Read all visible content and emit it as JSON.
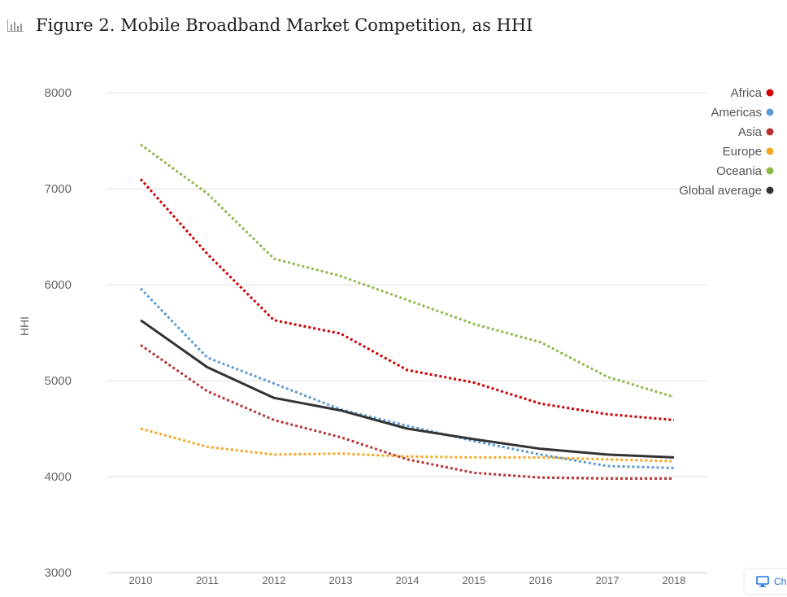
{
  "header": {
    "title": "Figure 2. Mobile Broadband Market Competition, as HHI",
    "icon": "bar-chart-icon"
  },
  "bottom_button": {
    "label": "Ch",
    "icon": "monitor-icon"
  },
  "chart_data": {
    "type": "line",
    "title": "Figure 2. Mobile Broadband Market Competition, as HHI",
    "xlabel": "",
    "ylabel": "HHI",
    "categories": [
      "2010",
      "2011",
      "2012",
      "2013",
      "2014",
      "2015",
      "2016",
      "2017",
      "2018"
    ],
    "ylim": [
      3000,
      8000
    ],
    "yticks": [
      3000,
      4000,
      5000,
      6000,
      7000,
      8000
    ],
    "grid": true,
    "legend_position": "top-right",
    "series": [
      {
        "name": "Africa",
        "color": "#cc0000",
        "style": "dotted",
        "values": [
          7100,
          6320,
          5630,
          5490,
          5110,
          4980,
          4760,
          4650,
          4590
        ]
      },
      {
        "name": "Americas",
        "color": "#5b9bd5",
        "style": "dotted",
        "values": [
          5960,
          5240,
          4970,
          4700,
          4530,
          4370,
          4230,
          4110,
          4090
        ]
      },
      {
        "name": "Asia",
        "color": "#b83232",
        "style": "dotted",
        "values": [
          5370,
          4890,
          4590,
          4410,
          4180,
          4040,
          3990,
          3980,
          3980
        ]
      },
      {
        "name": "Europe",
        "color": "#f5a623",
        "style": "dotted",
        "values": [
          4500,
          4310,
          4230,
          4240,
          4210,
          4200,
          4200,
          4180,
          4160
        ]
      },
      {
        "name": "Oceania",
        "color": "#8db84a",
        "style": "dotted",
        "values": [
          7460,
          6950,
          6270,
          6090,
          5840,
          5590,
          5400,
          5040,
          4830
        ]
      },
      {
        "name": "Global average",
        "color": "#333333",
        "style": "solid",
        "values": [
          5630,
          5140,
          4820,
          4690,
          4500,
          4390,
          4290,
          4230,
          4200
        ]
      }
    ]
  }
}
